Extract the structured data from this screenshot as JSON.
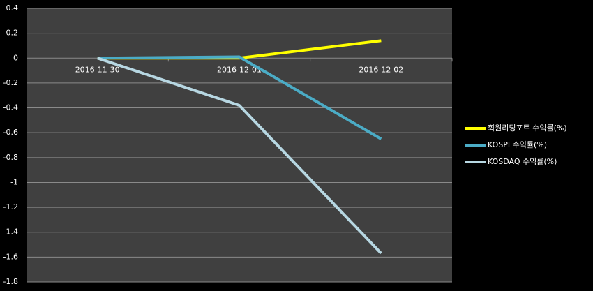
{
  "chart_data": {
    "type": "line",
    "categories": [
      "2016-11-30",
      "2016-12-01",
      "2016-12-02"
    ],
    "series": [
      {
        "name": "회원리딩포트 수익률(%)",
        "color": "#ffff00",
        "values": [
          0,
          0,
          0.14
        ]
      },
      {
        "name": "KOSPI 수익률(%)",
        "color": "#4bacc6",
        "values": [
          0,
          0.01,
          -0.65
        ]
      },
      {
        "name": "KOSDAQ 수익률(%)",
        "color": "#b7d7e2",
        "values": [
          0,
          -0.38,
          -1.57
        ]
      }
    ],
    "ylim": [
      -1.8,
      0.4
    ],
    "yticks": [
      0.4,
      0.2,
      0,
      -0.2,
      -0.4,
      -0.6,
      -0.8,
      -1,
      -1.2,
      -1.4,
      -1.6,
      -1.8
    ],
    "grid": true,
    "legend": "right"
  }
}
